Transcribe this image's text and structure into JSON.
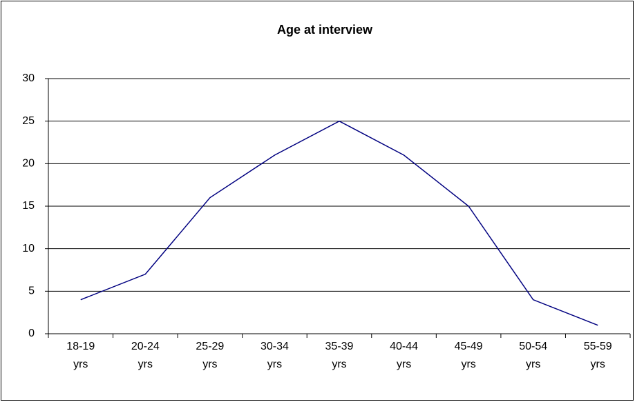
{
  "chart_data": {
    "type": "line",
    "title": "Age at interview",
    "categories": [
      "18-19 yrs",
      "20-24 yrs",
      "25-29 yrs",
      "30-34 yrs",
      "35-39 yrs",
      "40-44 yrs",
      "45-49 yrs",
      "50-54 yrs",
      "55-59 yrs"
    ],
    "series": [
      {
        "name": "Age at interview",
        "color": "#000080",
        "values": [
          4,
          7,
          16,
          21,
          25,
          21,
          15,
          4,
          1
        ]
      }
    ],
    "ylim": [
      0,
      30
    ],
    "yticks": [
      0,
      5,
      10,
      15,
      20,
      25,
      30
    ],
    "grid": true,
    "legend": false
  }
}
